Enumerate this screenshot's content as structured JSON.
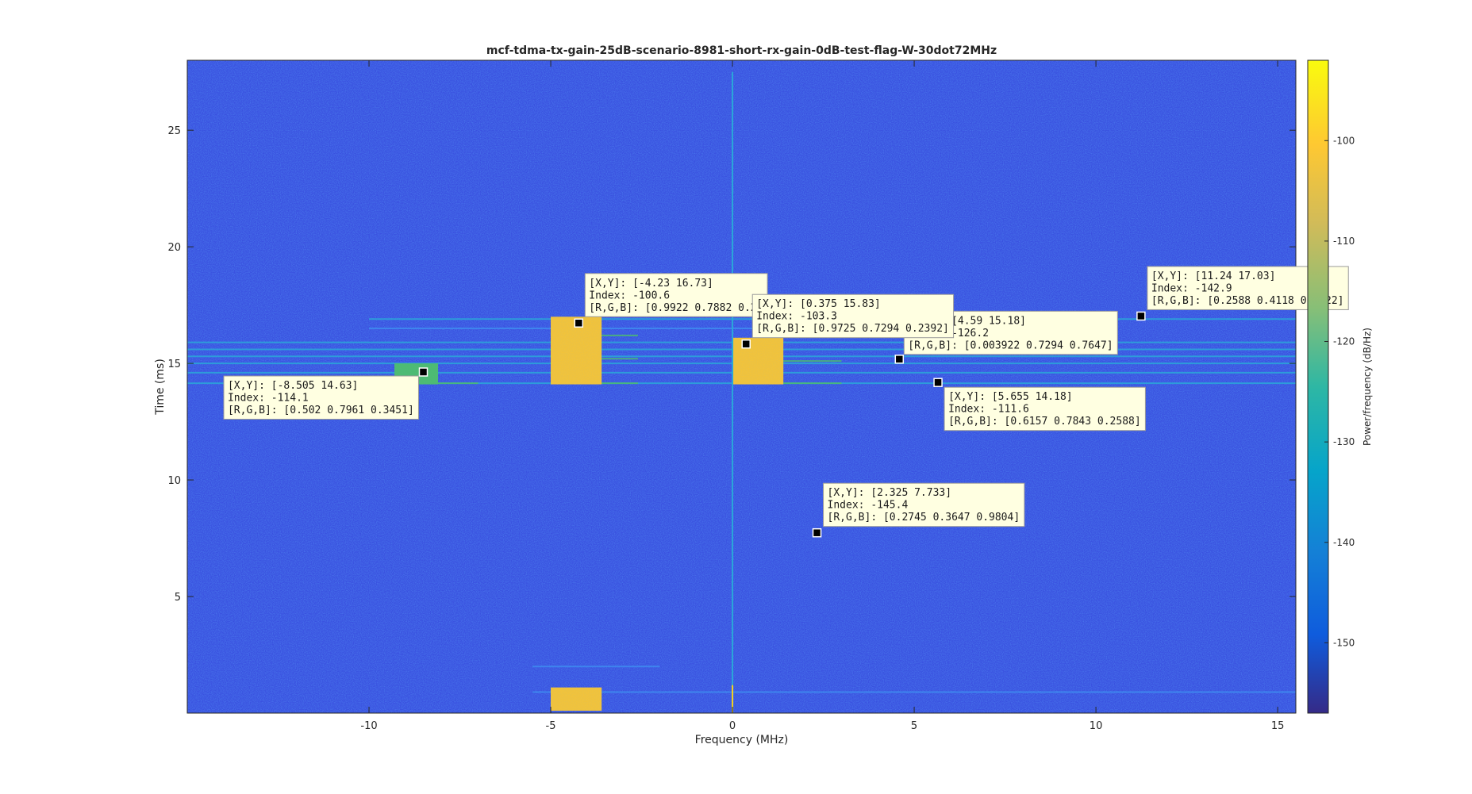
{
  "chart_data": {
    "type": "heatmap",
    "title": "mcf-tdma-tx-gain-25dB-scenario-8981-short-rx-gain-0dB-test-flag-W-30dot72MHz",
    "xlabel": "Frequency (MHz)",
    "ylabel": "Time (ms)",
    "xlim": [
      -15.0,
      15.5
    ],
    "ylim": [
      0,
      28
    ],
    "xticks": [
      -10,
      -5,
      0,
      5,
      10,
      15
    ],
    "yticks": [
      5,
      10,
      15,
      20,
      25
    ],
    "grid": false,
    "background_level_dB": -147,
    "colorbar": {
      "label": "Power/frequency (dB/Hz)",
      "range": [
        -157,
        -92
      ],
      "ticks": [
        -100,
        -110,
        -120,
        -130,
        -140,
        -150
      ],
      "colormap": "parula"
    },
    "colors": {
      "background": "#3a52e0",
      "strong": "#f2c33a",
      "medium": "#4dbb70",
      "spur": "#2ba7d9",
      "datatip_bg": "#ffffe1"
    },
    "signal_regions": [
      {
        "x": [
          -5.0,
          -3.6
        ],
        "y": [
          14.1,
          17.0
        ],
        "level": -100.6
      },
      {
        "x": [
          0.0,
          1.4
        ],
        "y": [
          14.1,
          16.1
        ],
        "level": -103.3
      },
      {
        "x": [
          -9.3,
          -8.1
        ],
        "y": [
          14.1,
          15.0
        ],
        "level": -114.1
      },
      {
        "x": [
          -5.0,
          -3.6
        ],
        "y": [
          0.1,
          1.1
        ],
        "level": -100.6
      }
    ],
    "spur_lines": [
      {
        "x": [
          -15.0,
          15.5
        ],
        "y": 14.15,
        "level": -118
      },
      {
        "x": [
          -15.0,
          15.5
        ],
        "y": 14.6,
        "level": -128
      },
      {
        "x": [
          -15.0,
          15.5
        ],
        "y": 15.0,
        "level": -128
      },
      {
        "x": [
          -15.0,
          15.5
        ],
        "y": 15.3,
        "level": -130
      },
      {
        "x": [
          -15.0,
          15.5
        ],
        "y": 15.6,
        "level": -130
      },
      {
        "x": [
          -15.0,
          15.5
        ],
        "y": 15.9,
        "level": -130
      },
      {
        "x": [
          -10.0,
          15.5
        ],
        "y": 16.9,
        "level": -128
      },
      {
        "x": [
          -10.0,
          5.0
        ],
        "y": 16.5,
        "level": -132
      },
      {
        "x": [
          -5.5,
          15.5
        ],
        "y": 0.9,
        "level": -134
      },
      {
        "x": [
          -5.5,
          -2.0
        ],
        "y": 2.0,
        "level": -134
      },
      {
        "x": [
          -3.6,
          -2.6
        ],
        "y": 14.15,
        "level": -108
      },
      {
        "x": [
          -3.6,
          -2.6
        ],
        "y": 15.2,
        "level": -108
      },
      {
        "x": [
          -3.6,
          -2.6
        ],
        "y": 16.2,
        "level": -108
      },
      {
        "x": [
          1.4,
          3.0
        ],
        "y": 14.15,
        "level": -112
      },
      {
        "x": [
          1.4,
          3.0
        ],
        "y": 15.1,
        "level": -112
      },
      {
        "x": [
          -8.1,
          -7.0
        ],
        "y": 14.15,
        "level": -110
      }
    ],
    "dc_line": {
      "x": 0.0,
      "y": [
        0,
        27.5
      ],
      "level": -125
    },
    "datatips": [
      {
        "x": -4.23,
        "y": 16.73,
        "lines": [
          "[X,Y]: [-4.23 16.73]",
          "Index: -100.6",
          "[R,G,B]: [0.9922 0.7882 0.2]"
        ],
        "placement": "upper-right"
      },
      {
        "x": 0.375,
        "y": 15.83,
        "lines": [
          "[X,Y]: [0.375 15.83]",
          "Index: -103.3",
          "[R,G,B]: [0.9725 0.7294 0.2392]"
        ],
        "placement": "upper-right"
      },
      {
        "x": 4.59,
        "y": 15.18,
        "lines": [
          "[X,Y]: [4.59 15.18]",
          "Index: -126.2",
          "[R,G,B]: [0.003922 0.7294 0.7647]"
        ],
        "placement": "upper-right-occluded"
      },
      {
        "x": -8.505,
        "y": 14.63,
        "lines": [
          "[X,Y]: [-8.505 14.63]",
          "Index: -114.1",
          "[R,G,B]: [0.502 0.7961 0.3451]"
        ],
        "placement": "lower-left"
      },
      {
        "x": 5.655,
        "y": 14.18,
        "lines": [
          "[X,Y]: [5.655 14.18]",
          "Index: -111.6",
          "[R,G,B]: [0.6157 0.7843 0.2588]"
        ],
        "placement": "lower-right"
      },
      {
        "x": 11.24,
        "y": 17.03,
        "lines": [
          "[X,Y]: [11.24 17.03]",
          "Index: -142.9",
          "[R,G,B]: [0.2588 0.4118 0.9922]"
        ],
        "placement": "upper-right"
      },
      {
        "x": 2.325,
        "y": 7.733,
        "lines": [
          "[X,Y]: [2.325 7.733]",
          "Index: -145.4",
          "[R,G,B]: [0.2745 0.3647 0.9804]"
        ],
        "placement": "upper-right"
      }
    ]
  }
}
